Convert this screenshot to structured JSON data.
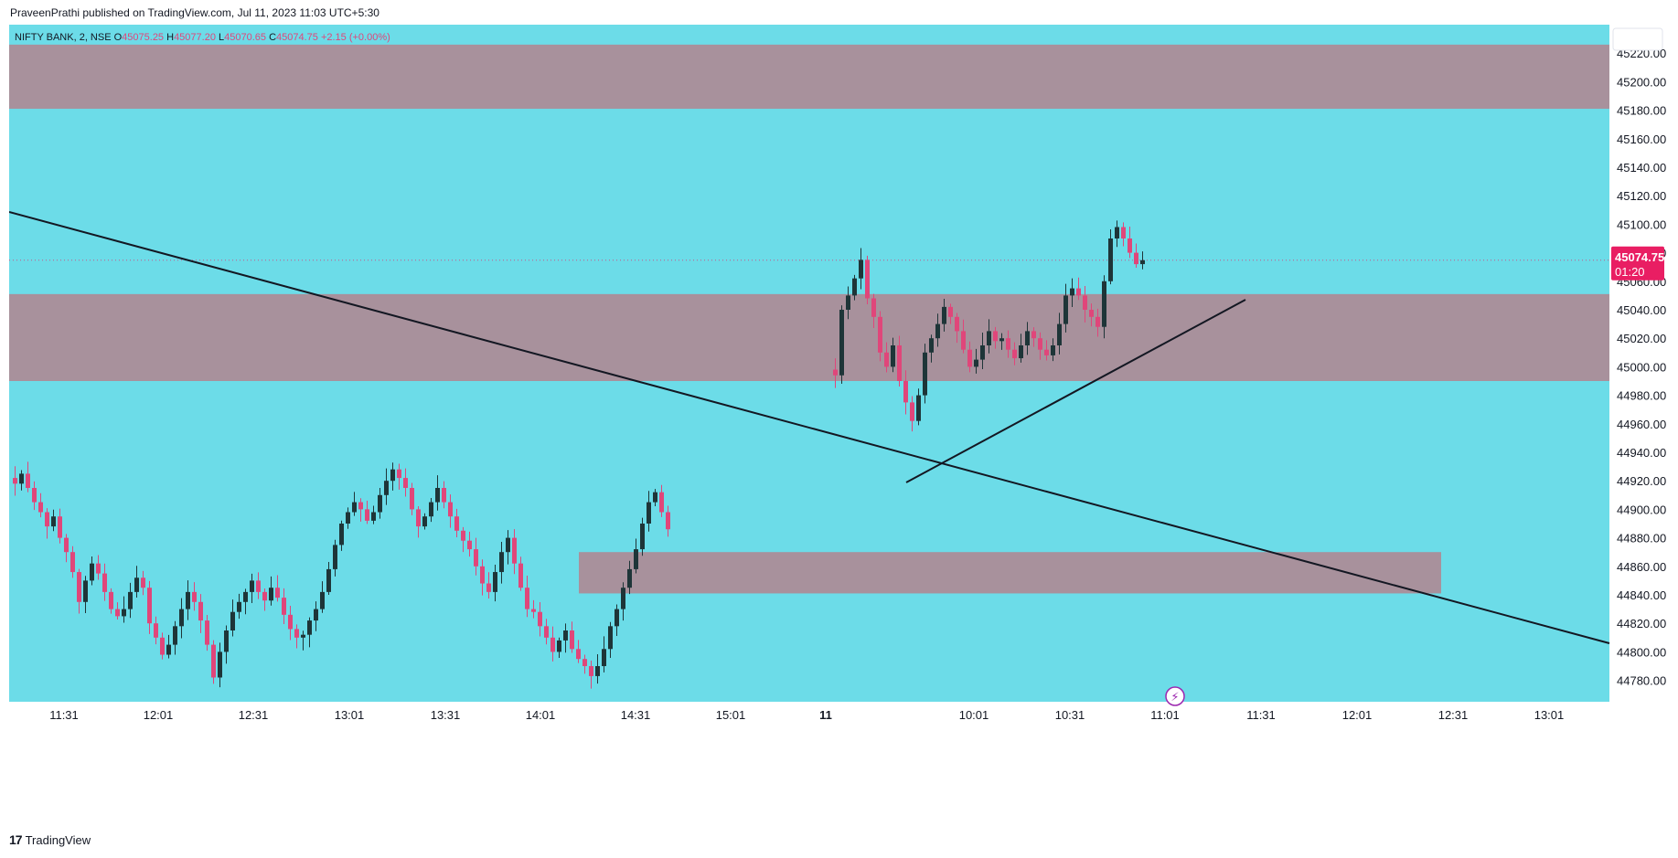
{
  "header": {
    "published": "PraveenPrathi published on TradingView.com, Jul 11, 2023 11:03 UTC+5:30"
  },
  "legend": {
    "symbol": "NIFTY BANK, 2, NSE",
    "o_label": "O",
    "o_value": "45075.25",
    "h_label": "H",
    "h_value": "45077.20",
    "l_label": "L",
    "l_value": "45070.65",
    "c_label": "C",
    "c_value": "45074.75",
    "change": "+2.15 (+0.00%)"
  },
  "price_marker": {
    "price": "45074.75",
    "countdown": "01:20",
    "value": 45074.75
  },
  "footer": {
    "brand": "TradingView"
  },
  "colors": {
    "background": "#6cdce8",
    "zone": "#a8919c",
    "up": "#1e3538",
    "down": "#e0467a",
    "price_marker": "#e91e63"
  },
  "chart_data": {
    "type": "candlestick",
    "symbol": "NIFTY BANK",
    "interval": "2",
    "exchange": "NSE",
    "ylim": [
      44765,
      45240
    ],
    "y_ticks": [
      44780,
      44800,
      44820,
      44840,
      44860,
      44880,
      44900,
      44920,
      44940,
      44960,
      44980,
      45000,
      45020,
      45040,
      45060,
      45080,
      45100,
      45120,
      45140,
      45160,
      45180,
      45200,
      45220
    ],
    "y_tick_labels": [
      "44780.00",
      "44800.00",
      "44820.00",
      "44840.00",
      "44860.00",
      "44880.00",
      "44900.00",
      "44920.00",
      "44940.00",
      "44960.00",
      "44980.00",
      "45000.00",
      "45020.00",
      "45040.00",
      "45060.00",
      "45080.00",
      "45100.00",
      "45120.00",
      "45140.00",
      "45160.00",
      "45180.00",
      "45200.00",
      "45220.00"
    ],
    "x_tick_labels": [
      "11:31",
      "12:01",
      "12:31",
      "13:01",
      "13:31",
      "14:01",
      "14:31",
      "15:01",
      "11",
      "10:01",
      "10:31",
      "11:01",
      "11:31",
      "12:01",
      "12:31",
      "13:01"
    ],
    "x_tick_bold": [
      false,
      false,
      false,
      false,
      false,
      false,
      false,
      false,
      true,
      false,
      false,
      false,
      false,
      false,
      false,
      false
    ],
    "zones": [
      {
        "y_from": 45181,
        "y_to": 45226
      },
      {
        "y_from": 44990,
        "y_to": 45051
      },
      {
        "y_from": 44841,
        "y_to": 44870
      }
    ],
    "trendlines": [
      {
        "from": [
          0,
          45137
        ],
        "to": [
          166,
          44859
        ]
      },
      {
        "from": [
          93,
          44956
        ],
        "to": [
          128,
          45076
        ]
      }
    ],
    "day1_close_series": [
      44918,
      44925,
      44915,
      44905,
      44898,
      44888,
      44895,
      44880,
      44870,
      44856,
      44835,
      44850,
      44862,
      44855,
      44842,
      44830,
      44825,
      44830,
      44842,
      44852,
      44845,
      44820,
      44810,
      44798,
      44805,
      44818,
      44830,
      44842,
      44835,
      44822,
      44805,
      44782,
      44800,
      44815,
      44828,
      44835,
      44842,
      44850,
      44842,
      44836,
      44845,
      44838,
      44826,
      44816,
      44810,
      44812,
      44822,
      44830,
      44842,
      44858,
      44875,
      44890,
      44898,
      44905,
      44900,
      44892,
      44898,
      44910,
      44920,
      44928,
      44922,
      44915,
      44900,
      44888,
      44895,
      44905,
      44915,
      44905,
      44895,
      44885,
      44878,
      44872,
      44860,
      44848,
      44842,
      44856,
      44870,
      44880,
      44862,
      44845,
      44830,
      44828,
      44818,
      44810,
      44800,
      44808,
      44815,
      44802,
      44795,
      44790,
      44783,
      44790,
      44802,
      44818,
      44830,
      44845,
      44858,
      44872,
      44890,
      44905,
      44912,
      44898,
      44886
    ],
    "day2_close_series": [
      44994,
      45040,
      45050,
      45062,
      45075,
      45048,
      45035,
      45010,
      45000,
      45015,
      44990,
      44975,
      44962,
      44980,
      45010,
      45020,
      45030,
      45042,
      45035,
      45025,
      45012,
      45000,
      45005,
      45015,
      45025,
      45018,
      45020,
      45012,
      45006,
      45015,
      45025,
      45020,
      45012,
      45008,
      45015,
      45030,
      45050,
      45055,
      45050,
      45040,
      45035,
      45028,
      45060,
      45090,
      45098,
      45090,
      45080,
      45072,
      45074.75
    ]
  }
}
